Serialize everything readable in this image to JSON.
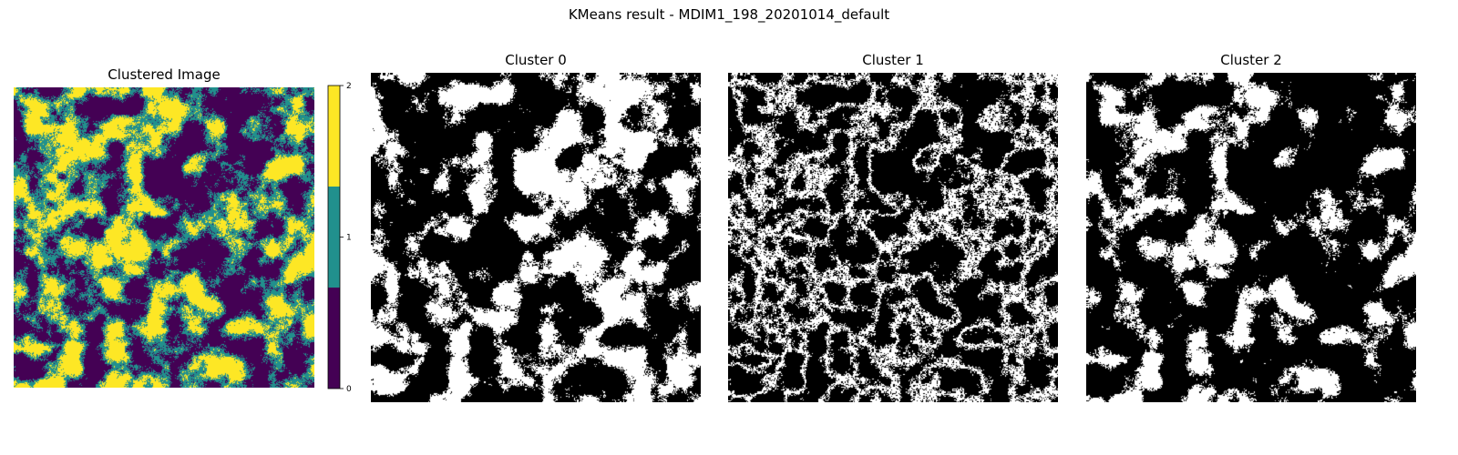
{
  "figure": {
    "title": "KMeans result - MDIM1_198_20201014_default"
  },
  "chart_data": [
    {
      "type": "heatmap",
      "title": "Clustered Image",
      "cluster_values": [
        0,
        1,
        2
      ],
      "colors": {
        "0": "#440154",
        "1": "#21908d",
        "2": "#fde725"
      },
      "colorbar": {
        "ticks": [
          "0",
          "1",
          "2"
        ],
        "range": [
          0,
          2
        ],
        "grid": false
      }
    },
    {
      "type": "heatmap",
      "title": "Cluster 0",
      "colors": {
        "member": "#ffffff",
        "non_member": "#000000"
      }
    },
    {
      "type": "heatmap",
      "title": "Cluster 1",
      "colors": {
        "member": "#ffffff",
        "non_member": "#000000"
      }
    },
    {
      "type": "heatmap",
      "title": "Cluster 2",
      "colors": {
        "member": "#ffffff",
        "non_member": "#000000"
      }
    }
  ]
}
